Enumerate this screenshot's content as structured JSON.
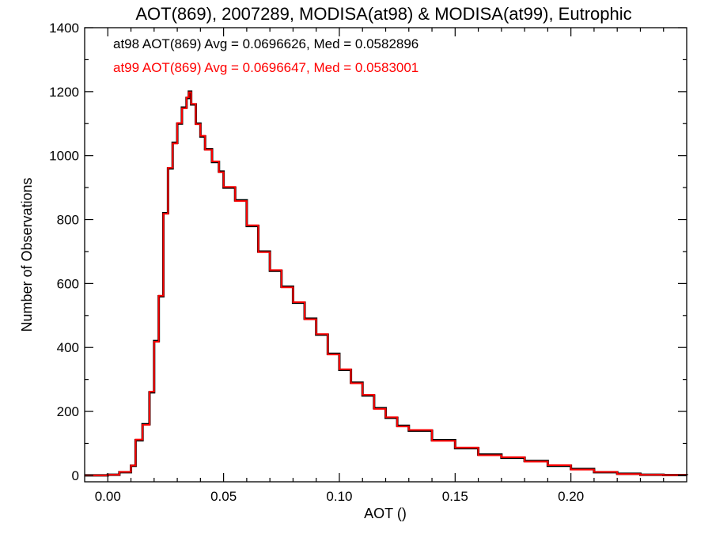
{
  "chart_data": {
    "type": "line",
    "title": "AOT(869), 2007289, MODISA(at98) & MODISA(at99), Eutrophic",
    "xlabel": "AOT ()",
    "ylabel": "Number of Observations",
    "xlim": [
      -0.01,
      0.25
    ],
    "ylim": [
      -20,
      1400
    ],
    "x_ticks": [
      0.0,
      0.05,
      0.1,
      0.15,
      0.2
    ],
    "x_tick_labels": [
      "0.00",
      "0.05",
      "0.10",
      "0.15",
      "0.20"
    ],
    "y_ticks": [
      0,
      200,
      400,
      600,
      800,
      1000,
      1200,
      1400
    ],
    "y_tick_labels": [
      "0",
      "200",
      "400",
      "600",
      "800",
      "1000",
      "1200",
      "1400"
    ],
    "annotations": [
      {
        "text": "at98 AOT(869) Avg = 0.0696626, Med = 0.0582896",
        "color": "#000000"
      },
      {
        "text": "at99 AOT(869) Avg = 0.0696647, Med = 0.0583001",
        "color": "#ff0000"
      }
    ],
    "series": [
      {
        "name": "at98",
        "color": "#000000",
        "x": [
          -0.01,
          -0.005,
          0.0,
          0.005,
          0.01,
          0.012,
          0.015,
          0.018,
          0.02,
          0.022,
          0.024,
          0.026,
          0.028,
          0.03,
          0.032,
          0.034,
          0.035,
          0.036,
          0.038,
          0.04,
          0.042,
          0.045,
          0.048,
          0.05,
          0.055,
          0.06,
          0.065,
          0.07,
          0.075,
          0.08,
          0.085,
          0.09,
          0.095,
          0.1,
          0.105,
          0.11,
          0.115,
          0.12,
          0.125,
          0.13,
          0.14,
          0.15,
          0.16,
          0.17,
          0.18,
          0.19,
          0.2,
          0.21,
          0.22,
          0.23,
          0.24,
          0.25
        ],
        "y": [
          0,
          0,
          2,
          10,
          30,
          110,
          160,
          260,
          420,
          560,
          820,
          960,
          1040,
          1100,
          1150,
          1180,
          1200,
          1160,
          1100,
          1060,
          1020,
          980,
          950,
          900,
          860,
          780,
          700,
          640,
          590,
          540,
          490,
          440,
          380,
          330,
          290,
          250,
          210,
          180,
          155,
          140,
          110,
          85,
          65,
          55,
          45,
          30,
          20,
          10,
          5,
          2,
          1,
          0
        ]
      },
      {
        "name": "at99",
        "color": "#ff0000",
        "x": [
          -0.01,
          -0.005,
          0.0,
          0.005,
          0.01,
          0.012,
          0.015,
          0.018,
          0.02,
          0.022,
          0.024,
          0.026,
          0.028,
          0.03,
          0.032,
          0.034,
          0.035,
          0.036,
          0.038,
          0.04,
          0.042,
          0.045,
          0.048,
          0.05,
          0.055,
          0.06,
          0.065,
          0.07,
          0.075,
          0.08,
          0.085,
          0.09,
          0.095,
          0.1,
          0.105,
          0.11,
          0.115,
          0.12,
          0.125,
          0.13,
          0.14,
          0.15,
          0.16,
          0.17,
          0.18,
          0.19,
          0.2,
          0.21,
          0.22,
          0.23,
          0.24,
          0.25
        ],
        "y": [
          0,
          0,
          2,
          11,
          31,
          112,
          158,
          262,
          418,
          562,
          818,
          962,
          1038,
          1102,
          1148,
          1182,
          1198,
          1162,
          1098,
          1062,
          1018,
          982,
          948,
          902,
          858,
          782,
          698,
          642,
          588,
          542,
          488,
          442,
          378,
          332,
          288,
          252,
          208,
          182,
          153,
          142,
          108,
          87,
          63,
          57,
          43,
          32,
          18,
          11,
          4,
          2,
          1,
          0
        ]
      }
    ]
  }
}
